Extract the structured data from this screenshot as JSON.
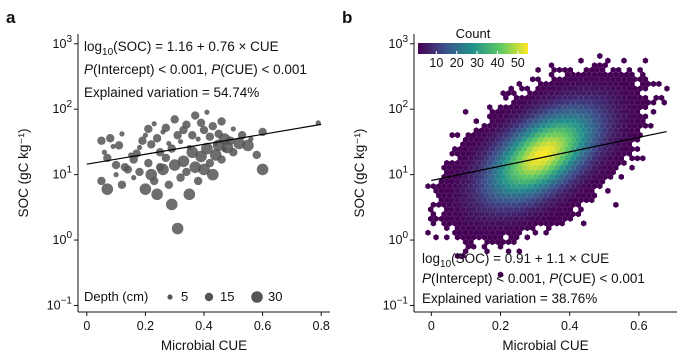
{
  "chart_data": [
    {
      "panel": "a",
      "type": "scatter",
      "xlabel": "Microbial CUE",
      "ylabel": "SOC (gC kg⁻¹)",
      "xlim": [
        -0.03,
        0.83
      ],
      "ylim_log10": [
        -1.1,
        3.15
      ],
      "yscale": "log",
      "xticks": [
        0,
        0.2,
        0.4,
        0.6,
        0.8
      ],
      "xtick_labels": [
        "0",
        "0.2",
        "0.4",
        "0.6",
        "0.8"
      ],
      "yticks_log10": [
        -1,
        0,
        1,
        2,
        3
      ],
      "ytick_labels": [
        {
          "base": "10",
          "exp": "−1"
        },
        {
          "base": "10",
          "exp": "0"
        },
        {
          "base": "10",
          "exp": "1"
        },
        {
          "base": "10",
          "exp": "2"
        },
        {
          "base": "10",
          "exp": "3"
        }
      ],
      "annotation": {
        "line1": {
          "pre": "log",
          "sub": "10",
          "post": "(SOC) = 1.16 + 0.76 × CUE"
        },
        "line2": {
          "p1": "P",
          "t1": "(Intercept) < 0.001, ",
          "p2": "P",
          "t2": "(CUE) < 0.001"
        },
        "line3": "Explained variation = 54.74%"
      },
      "regression": {
        "intercept": 1.16,
        "slope": 0.76,
        "x_range": [
          0.0,
          0.8
        ]
      },
      "legend": {
        "title": "Depth (cm)",
        "entries": [
          {
            "label": "5",
            "depth": 5
          },
          {
            "label": "15",
            "depth": 15
          },
          {
            "label": "30",
            "depth": 30
          }
        ]
      },
      "point_color": "#555555",
      "points": [
        {
          "x": 0.05,
          "y": 33,
          "depth": 15
        },
        {
          "x": 0.06,
          "y": 22,
          "depth": 5
        },
        {
          "x": 0.07,
          "y": 18,
          "depth": 15
        },
        {
          "x": 0.08,
          "y": 36,
          "depth": 15
        },
        {
          "x": 0.09,
          "y": 27,
          "depth": 5
        },
        {
          "x": 0.1,
          "y": 14,
          "depth": 15
        },
        {
          "x": 0.11,
          "y": 28,
          "depth": 15
        },
        {
          "x": 0.12,
          "y": 42,
          "depth": 5
        },
        {
          "x": 0.13,
          "y": 13,
          "depth": 15
        },
        {
          "x": 0.15,
          "y": 20,
          "depth": 5
        },
        {
          "x": 0.16,
          "y": 17,
          "depth": 15
        },
        {
          "x": 0.17,
          "y": 21,
          "depth": 15
        },
        {
          "x": 0.18,
          "y": 26,
          "depth": 5
        },
        {
          "x": 0.19,
          "y": 33,
          "depth": 15
        },
        {
          "x": 0.2,
          "y": 40,
          "depth": 5
        },
        {
          "x": 0.21,
          "y": 50,
          "depth": 15
        },
        {
          "x": 0.22,
          "y": 29,
          "depth": 15
        },
        {
          "x": 0.23,
          "y": 60,
          "depth": 5
        },
        {
          "x": 0.24,
          "y": 36,
          "depth": 15
        },
        {
          "x": 0.25,
          "y": 22,
          "depth": 15
        },
        {
          "x": 0.26,
          "y": 45,
          "depth": 5
        },
        {
          "x": 0.27,
          "y": 52,
          "depth": 15
        },
        {
          "x": 0.28,
          "y": 30,
          "depth": 5
        },
        {
          "x": 0.29,
          "y": 25,
          "depth": 15
        },
        {
          "x": 0.3,
          "y": 70,
          "depth": 15
        },
        {
          "x": 0.31,
          "y": 40,
          "depth": 15
        },
        {
          "x": 0.32,
          "y": 32,
          "depth": 5
        },
        {
          "x": 0.33,
          "y": 48,
          "depth": 15
        },
        {
          "x": 0.34,
          "y": 58,
          "depth": 15
        },
        {
          "x": 0.35,
          "y": 26,
          "depth": 5
        },
        {
          "x": 0.36,
          "y": 40,
          "depth": 15
        },
        {
          "x": 0.37,
          "y": 80,
          "depth": 15
        },
        {
          "x": 0.38,
          "y": 35,
          "depth": 5
        },
        {
          "x": 0.39,
          "y": 62,
          "depth": 15
        },
        {
          "x": 0.4,
          "y": 48,
          "depth": 15
        },
        {
          "x": 0.41,
          "y": 90,
          "depth": 5
        },
        {
          "x": 0.42,
          "y": 38,
          "depth": 15
        },
        {
          "x": 0.43,
          "y": 55,
          "depth": 15
        },
        {
          "x": 0.44,
          "y": 30,
          "depth": 5
        },
        {
          "x": 0.45,
          "y": 42,
          "depth": 15
        },
        {
          "x": 0.46,
          "y": 65,
          "depth": 15
        },
        {
          "x": 0.47,
          "y": 24,
          "depth": 5
        },
        {
          "x": 0.49,
          "y": 33,
          "depth": 15
        },
        {
          "x": 0.5,
          "y": 50,
          "depth": 5
        },
        {
          "x": 0.53,
          "y": 40,
          "depth": 15
        },
        {
          "x": 0.56,
          "y": 35,
          "depth": 5
        },
        {
          "x": 0.6,
          "y": 45,
          "depth": 15
        },
        {
          "x": 0.79,
          "y": 62,
          "depth": 5
        },
        {
          "x": 0.05,
          "y": 8,
          "depth": 15
        },
        {
          "x": 0.07,
          "y": 6,
          "depth": 30
        },
        {
          "x": 0.1,
          "y": 10,
          "depth": 5
        },
        {
          "x": 0.12,
          "y": 7,
          "depth": 15
        },
        {
          "x": 0.14,
          "y": 12,
          "depth": 15
        },
        {
          "x": 0.16,
          "y": 9,
          "depth": 5
        },
        {
          "x": 0.18,
          "y": 11,
          "depth": 15
        },
        {
          "x": 0.2,
          "y": 6,
          "depth": 30
        },
        {
          "x": 0.21,
          "y": 15,
          "depth": 15
        },
        {
          "x": 0.22,
          "y": 10,
          "depth": 30
        },
        {
          "x": 0.23,
          "y": 8,
          "depth": 15
        },
        {
          "x": 0.24,
          "y": 5,
          "depth": 30
        },
        {
          "x": 0.25,
          "y": 13,
          "depth": 15
        },
        {
          "x": 0.26,
          "y": 12,
          "depth": 30
        },
        {
          "x": 0.27,
          "y": 18,
          "depth": 15
        },
        {
          "x": 0.28,
          "y": 7,
          "depth": 15
        },
        {
          "x": 0.29,
          "y": 3.5,
          "depth": 30
        },
        {
          "x": 0.3,
          "y": 14,
          "depth": 30
        },
        {
          "x": 0.31,
          "y": 1.5,
          "depth": 30
        },
        {
          "x": 0.32,
          "y": 9,
          "depth": 15
        },
        {
          "x": 0.33,
          "y": 16,
          "depth": 30
        },
        {
          "x": 0.34,
          "y": 11,
          "depth": 15
        },
        {
          "x": 0.35,
          "y": 5,
          "depth": 30
        },
        {
          "x": 0.36,
          "y": 22,
          "depth": 30
        },
        {
          "x": 0.37,
          "y": 13,
          "depth": 30
        },
        {
          "x": 0.38,
          "y": 8,
          "depth": 15
        },
        {
          "x": 0.39,
          "y": 19,
          "depth": 30
        },
        {
          "x": 0.4,
          "y": 12,
          "depth": 30
        },
        {
          "x": 0.41,
          "y": 25,
          "depth": 30
        },
        {
          "x": 0.42,
          "y": 15,
          "depth": 15
        },
        {
          "x": 0.43,
          "y": 10,
          "depth": 30
        },
        {
          "x": 0.44,
          "y": 20,
          "depth": 30
        },
        {
          "x": 0.45,
          "y": 28,
          "depth": 30
        },
        {
          "x": 0.46,
          "y": 17,
          "depth": 15
        },
        {
          "x": 0.47,
          "y": 35,
          "depth": 30
        },
        {
          "x": 0.48,
          "y": 26,
          "depth": 30
        },
        {
          "x": 0.5,
          "y": 22,
          "depth": 15
        },
        {
          "x": 0.52,
          "y": 30,
          "depth": 30
        },
        {
          "x": 0.55,
          "y": 28,
          "depth": 30
        },
        {
          "x": 0.58,
          "y": 20,
          "depth": 15
        },
        {
          "x": 0.6,
          "y": 12,
          "depth": 30
        }
      ]
    },
    {
      "panel": "b",
      "type": "heatmap",
      "subtype": "hexbin",
      "xlabel": "Microbial CUE",
      "ylabel": "SOC (gC kg⁻¹)",
      "xlim": [
        -0.05,
        0.71
      ],
      "ylim_log10": [
        -1.1,
        3.15
      ],
      "yscale": "log",
      "xticks": [
        0,
        0.2,
        0.4,
        0.6
      ],
      "xtick_labels": [
        "0",
        "0.2",
        "0.4",
        "0.6"
      ],
      "yticks_log10": [
        -1,
        0,
        1,
        2,
        3
      ],
      "ytick_labels": [
        {
          "base": "10",
          "exp": "−1"
        },
        {
          "base": "10",
          "exp": "0"
        },
        {
          "base": "10",
          "exp": "1"
        },
        {
          "base": "10",
          "exp": "2"
        },
        {
          "base": "10",
          "exp": "3"
        }
      ],
      "colorbar": {
        "title": "Count",
        "ticks": [
          10,
          20,
          30,
          40,
          50
        ],
        "tick_labels": [
          "10",
          "20",
          "30",
          "40",
          "50"
        ],
        "range": [
          1,
          55
        ],
        "colormap": [
          "#440154",
          "#3b528b",
          "#21918c",
          "#5ec962",
          "#fde725"
        ]
      },
      "annotation": {
        "line1": {
          "pre": "log",
          "sub": "10",
          "post": "(SOC) = 0.91 + 1.1 × CUE"
        },
        "line2": {
          "p1": "P",
          "t1": "(Intercept) < 0.001, ",
          "p2": "P",
          "t2": "(CUE) < 0.001"
        },
        "line3": "Explained variation = 38.76%"
      },
      "regression": {
        "intercept": 0.91,
        "slope": 1.1,
        "x_range": [
          0.0,
          0.68
        ]
      },
      "density": {
        "center": [
          0.32,
          1.3
        ],
        "spread": [
          0.1,
          0.4
        ],
        "correlation": 0.4,
        "peak": 55
      }
    }
  ]
}
